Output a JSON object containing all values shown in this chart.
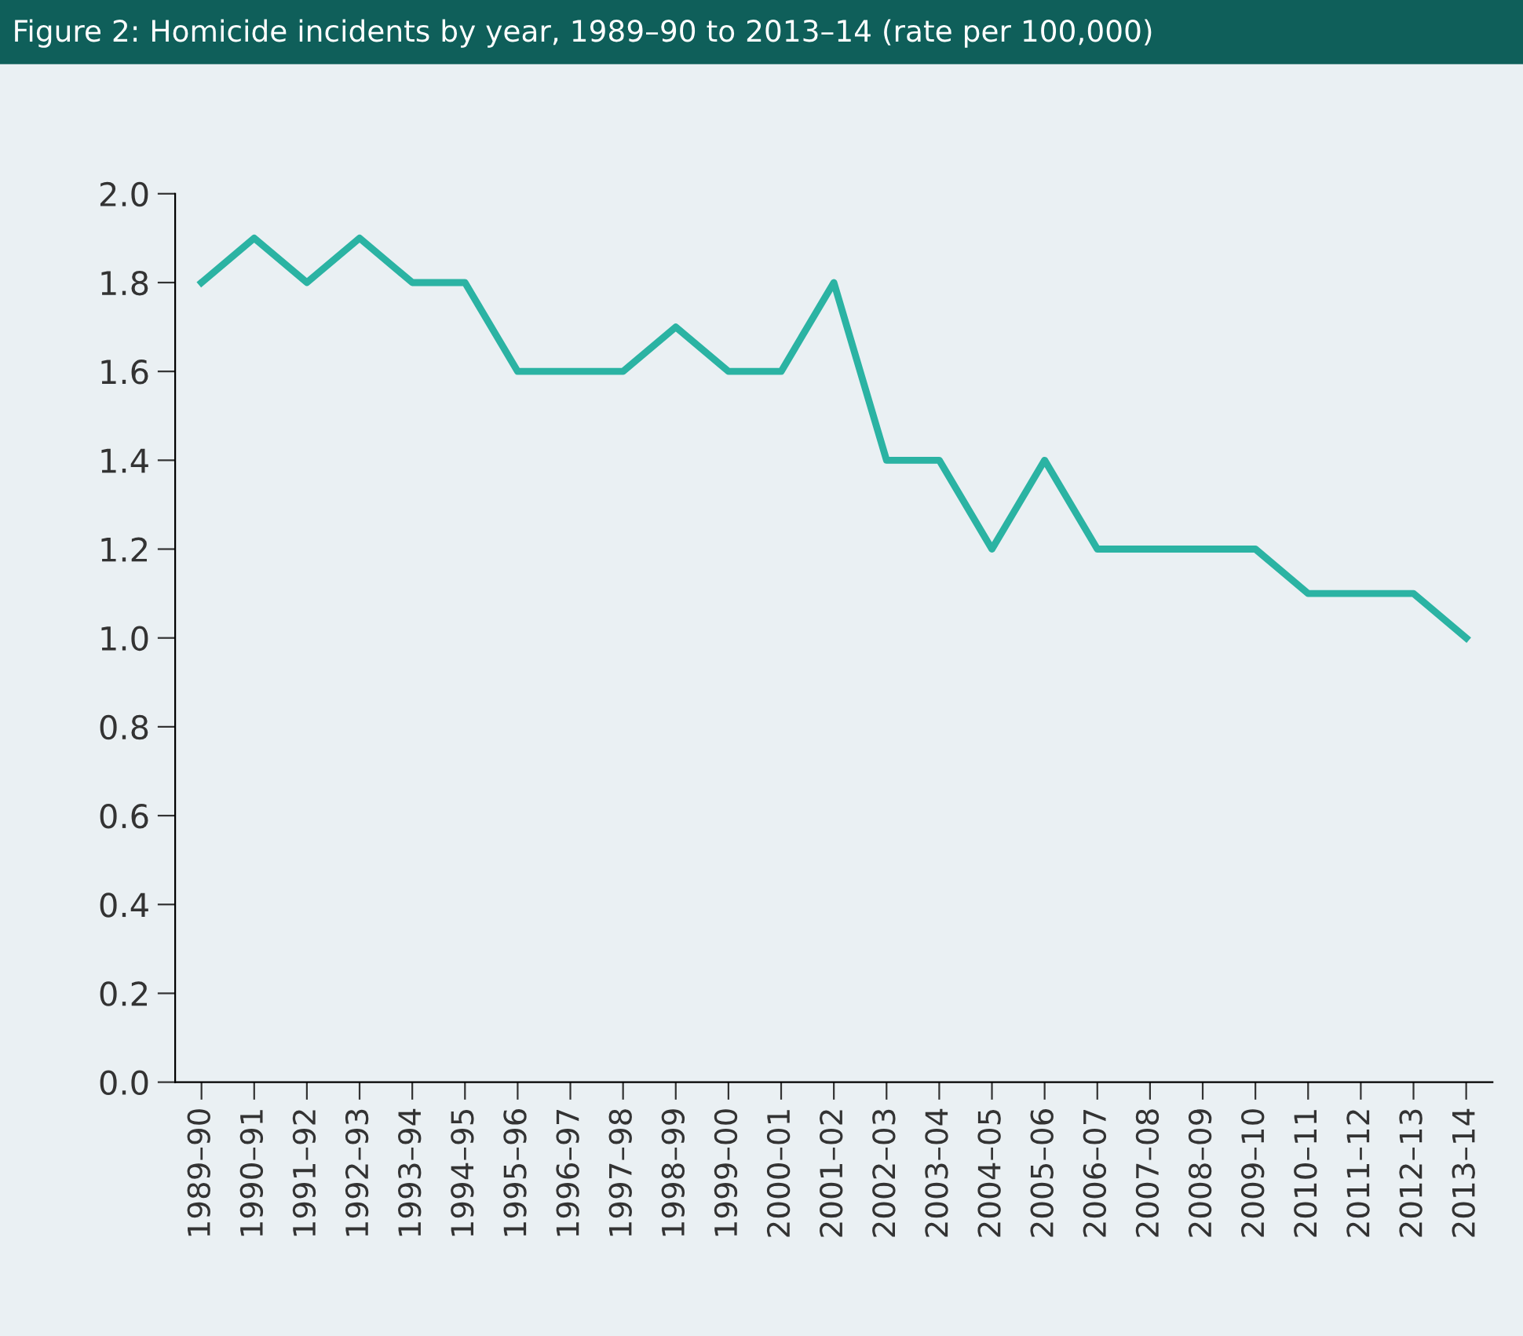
{
  "chart_data": {
    "type": "line",
    "title": "Figure 2: Homicide incidents by year, 1989–90 to 2013–14 (rate per 100,000)",
    "categories": [
      "1989–90",
      "1990–91",
      "1991–92",
      "1992–93",
      "1993–94",
      "1994–95",
      "1995–96",
      "1996–97",
      "1997–98",
      "1998–99",
      "1999–00",
      "2000–01",
      "2001–02",
      "2002–03",
      "2003–04",
      "2004–05",
      "2005–06",
      "2006–07",
      "2007–08",
      "2008–09",
      "2009–10",
      "2010–11",
      "2011–12",
      "2012–13",
      "2013–14"
    ],
    "series": [
      {
        "color": "#2bb3a3",
        "values": [
          1.8,
          1.9,
          1.8,
          1.9,
          1.8,
          1.8,
          1.6,
          1.6,
          1.6,
          1.7,
          1.6,
          1.6,
          1.8,
          1.4,
          1.4,
          1.2,
          1.4,
          1.2,
          1.2,
          1.2,
          1.2,
          1.1,
          1.1,
          1.1,
          1.0
        ]
      }
    ],
    "ylim": [
      0,
      2.0
    ],
    "yticks": [
      {
        "value": 0,
        "label": "0.0"
      },
      0.2,
      0.4,
      0.6,
      0.8,
      {
        "value": 1,
        "label": "1.0"
      },
      1.2,
      1.4,
      1.6,
      1.8,
      {
        "value": 2,
        "label": "2.0"
      }
    ],
    "grid": false,
    "legend": false,
    "marker": "none",
    "line_style": "solid"
  }
}
